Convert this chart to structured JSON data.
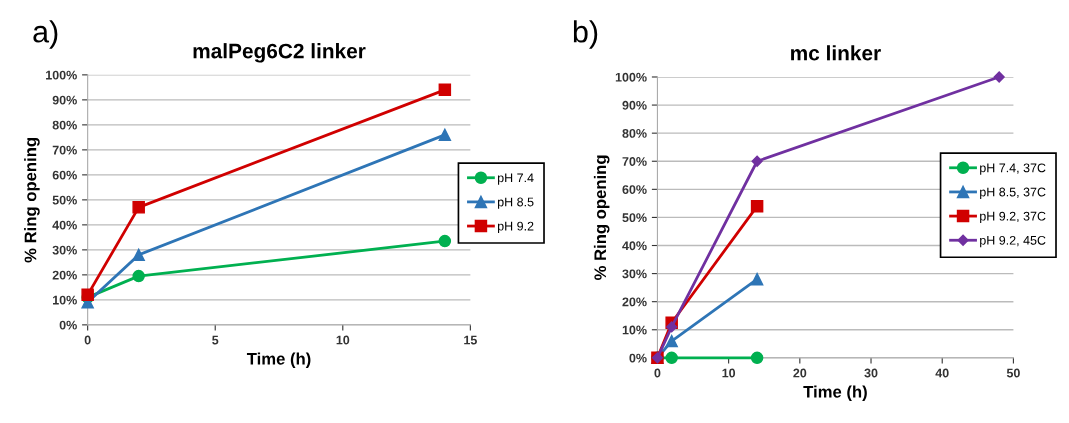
{
  "chart_data": [
    {
      "type": "line",
      "title": "malPeg6C2 linker",
      "xlabel": "Time (h)",
      "ylabel": "% Ring opening",
      "annotations": [
        "a)"
      ],
      "x": [
        0,
        2,
        14
      ],
      "series": [
        {
          "name": "pH 7.4",
          "color": "#00b050",
          "marker": "circle",
          "values": [
            11,
            19.5,
            33.5
          ]
        },
        {
          "name": "pH 8.5",
          "color": "#2e75b6",
          "marker": "triangle",
          "values": [
            9,
            28,
            76
          ]
        },
        {
          "name": "pH 9.2",
          "color": "#d00000",
          "marker": "square",
          "values": [
            12,
            47,
            94
          ]
        }
      ],
      "xlim": [
        0,
        15
      ],
      "xticks": [
        0,
        5,
        10,
        15
      ],
      "ylim": [
        0,
        100
      ],
      "yticks": [
        {
          "value": 0,
          "label": "0%"
        },
        {
          "value": 10,
          "label": "10%"
        },
        {
          "value": 20,
          "label": "20%"
        },
        {
          "value": 30,
          "label": "30%"
        },
        {
          "value": 40,
          "label": "40%"
        },
        {
          "value": 50,
          "label": "50%"
        },
        {
          "value": 60,
          "label": "60%"
        },
        {
          "value": 70,
          "label": "70%"
        },
        {
          "value": 80,
          "label": "80%"
        },
        {
          "value": 90,
          "label": "90%"
        },
        {
          "value": 100,
          "label": "100%"
        }
      ],
      "grid": "y",
      "legend": "right"
    },
    {
      "type": "line",
      "title": "mc linker",
      "xlabel": "Time (h)",
      "ylabel": "% Ring opening",
      "annotations": [
        "b)"
      ],
      "series": [
        {
          "name": "pH 7.4, 37C",
          "color": "#00b050",
          "marker": "circle",
          "x": [
            0,
            2,
            14
          ],
          "values": [
            0,
            0,
            0
          ]
        },
        {
          "name": "pH 8.5, 37C",
          "color": "#2e75b6",
          "marker": "triangle",
          "x": [
            0,
            2,
            14
          ],
          "values": [
            0,
            6,
            28
          ]
        },
        {
          "name": "pH 9.2, 37C",
          "color": "#d00000",
          "marker": "square",
          "x": [
            0,
            2,
            14
          ],
          "values": [
            0,
            12.5,
            54
          ]
        },
        {
          "name": "pH 9.2, 45C",
          "color": "#7030a0",
          "marker": "diamond",
          "x": [
            0,
            2,
            14,
            48
          ],
          "values": [
            0,
            11,
            70,
            100
          ]
        }
      ],
      "xlim": [
        0,
        50
      ],
      "xticks": [
        0,
        10,
        20,
        30,
        40,
        50
      ],
      "ylim": [
        0,
        100
      ],
      "yticks": [
        {
          "value": 0,
          "label": "0%"
        },
        {
          "value": 10,
          "label": "10%"
        },
        {
          "value": 20,
          "label": "20%"
        },
        {
          "value": 30,
          "label": "30%"
        },
        {
          "value": 40,
          "label": "40%"
        },
        {
          "value": 50,
          "label": "50%"
        },
        {
          "value": 60,
          "label": "60%"
        },
        {
          "value": 70,
          "label": "70%"
        },
        {
          "value": 80,
          "label": "80%"
        },
        {
          "value": 90,
          "label": "90%"
        },
        {
          "value": 100,
          "label": "100%"
        }
      ],
      "grid": "y",
      "legend": "right"
    }
  ]
}
